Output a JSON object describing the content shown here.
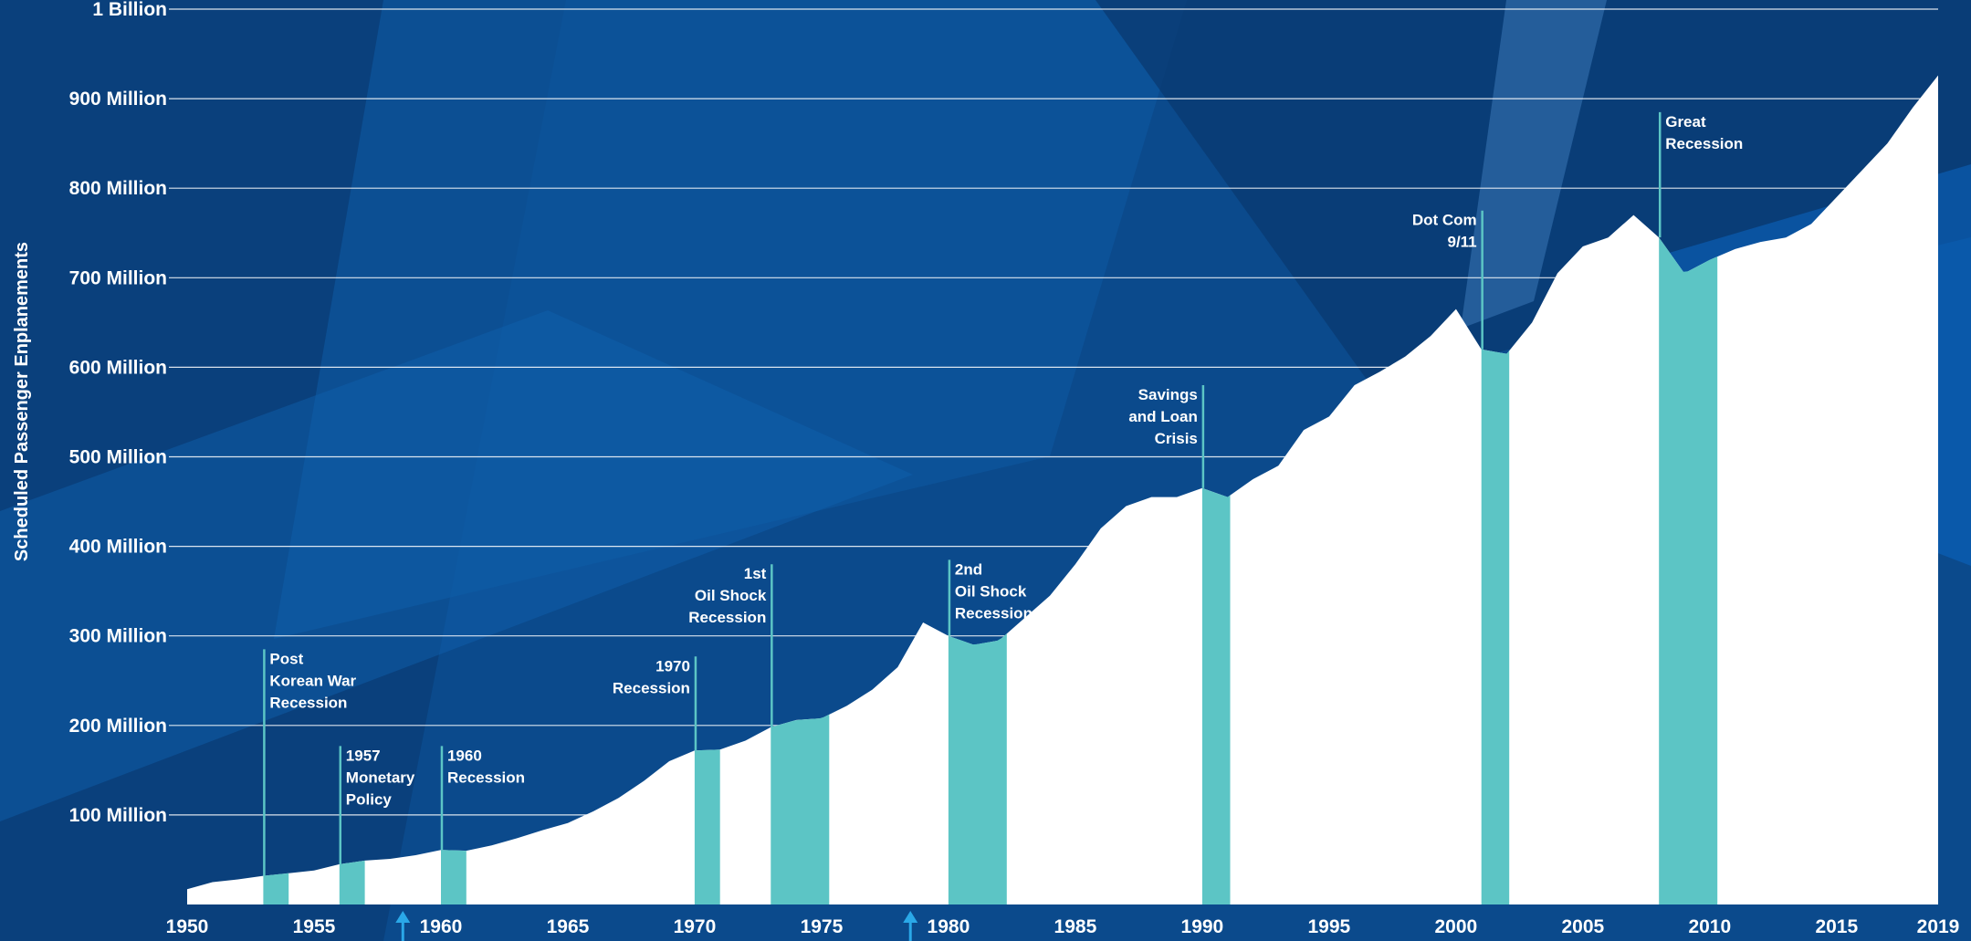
{
  "chart_data": {
    "type": "area",
    "title": "",
    "xlabel": "",
    "ylabel": "Scheduled Passenger Enplanements",
    "xlim": [
      1950,
      2019
    ],
    "ylim": [
      0,
      1000
    ],
    "grid": true,
    "x_ticks": [
      {
        "value": 1950,
        "label": "1950"
      },
      {
        "value": 1955,
        "label": "1955"
      },
      {
        "value": 1960,
        "label": "1960"
      },
      {
        "value": 1965,
        "label": "1965"
      },
      {
        "value": 1970,
        "label": "1970"
      },
      {
        "value": 1975,
        "label": "1975"
      },
      {
        "value": 1980,
        "label": "1980"
      },
      {
        "value": 1985,
        "label": "1985"
      },
      {
        "value": 1990,
        "label": "1990"
      },
      {
        "value": 1995,
        "label": "1995"
      },
      {
        "value": 2000,
        "label": "2000"
      },
      {
        "value": 2005,
        "label": "2005"
      },
      {
        "value": 2010,
        "label": "2010"
      },
      {
        "value": 2015,
        "label": "2015"
      },
      {
        "value": 2019,
        "label": "2019"
      }
    ],
    "y_ticks": [
      {
        "value": 100,
        "label": "100 Million"
      },
      {
        "value": 200,
        "label": "200 Million"
      },
      {
        "value": 300,
        "label": "300 Million"
      },
      {
        "value": 400,
        "label": "400 Million"
      },
      {
        "value": 500,
        "label": "500 Million"
      },
      {
        "value": 600,
        "label": "600 Million"
      },
      {
        "value": 700,
        "label": "700 Million"
      },
      {
        "value": 800,
        "label": "800 Million"
      },
      {
        "value": 900,
        "label": "900 Million"
      },
      {
        "value": 1000,
        "label": "1 Billion"
      }
    ],
    "x": [
      1950,
      1951,
      1952,
      1953,
      1954,
      1955,
      1956,
      1957,
      1958,
      1959,
      1960,
      1961,
      1962,
      1963,
      1964,
      1965,
      1966,
      1967,
      1968,
      1969,
      1970,
      1971,
      1972,
      1973,
      1974,
      1975,
      1976,
      1977,
      1978,
      1979,
      1980,
      1981,
      1982,
      1983,
      1984,
      1985,
      1986,
      1987,
      1988,
      1989,
      1990,
      1991,
      1992,
      1993,
      1994,
      1995,
      1996,
      1997,
      1998,
      1999,
      2000,
      2001,
      2002,
      2003,
      2004,
      2005,
      2006,
      2007,
      2008,
      2009,
      2010,
      2011,
      2012,
      2013,
      2014,
      2015,
      2016,
      2017,
      2018,
      2019
    ],
    "values": [
      17,
      25,
      28,
      32,
      35,
      38,
      45,
      49,
      51,
      55,
      61,
      60,
      66,
      74,
      83,
      91,
      104,
      119,
      138,
      160,
      172,
      173,
      183,
      198,
      206,
      208,
      222,
      240,
      265,
      315,
      300,
      290,
      295,
      320,
      345,
      380,
      420,
      445,
      455,
      455,
      465,
      455,
      475,
      490,
      530,
      545,
      580,
      595,
      612,
      635,
      665,
      620,
      615,
      650,
      705,
      735,
      745,
      770,
      745,
      705,
      720,
      732,
      740,
      745,
      760,
      790,
      820,
      850,
      890,
      926
    ],
    "series": [
      {
        "values_ref": "values"
      }
    ],
    "recessions": [
      {
        "start": 1953.0,
        "end": 1954.0,
        "label_lines": [
          "Post",
          "Korean War",
          "Recession"
        ],
        "side": "right",
        "top": 285
      },
      {
        "start": 1956.0,
        "end": 1957.0,
        "label_lines": [
          "1957",
          "Monetary",
          "Policy"
        ],
        "side": "right",
        "top": 177
      },
      {
        "start": 1960.0,
        "end": 1961.0,
        "label_lines": [
          "1960",
          "Recession"
        ],
        "side": "right",
        "top": 177
      },
      {
        "start": 1970.0,
        "end": 1971.0,
        "label_lines": [
          "1970",
          "Recession"
        ],
        "side": "left",
        "top": 277
      },
      {
        "start": 1973.0,
        "end": 1975.3,
        "label_lines": [
          "1st",
          "Oil Shock",
          "Recession"
        ],
        "side": "left",
        "top": 380
      },
      {
        "start": 1980.0,
        "end": 1982.3,
        "label_lines": [
          "2nd",
          "Oil Shock",
          "Recession"
        ],
        "side": "right",
        "top": 385
      },
      {
        "start": 1990.0,
        "end": 1991.1,
        "label_lines": [
          "Savings",
          "and Loan",
          "Crisis"
        ],
        "side": "left",
        "top": 580
      },
      {
        "start": 2001.0,
        "end": 2002.1,
        "label_lines": [
          "Dot Com",
          "9/11"
        ],
        "side": "left",
        "top": 775
      },
      {
        "start": 2008.0,
        "end": 2010.3,
        "label_lines": [
          "Great",
          "Recession"
        ],
        "side": "right",
        "top": 885
      }
    ],
    "markers": [
      {
        "year": 1958.5,
        "direction": "up"
      },
      {
        "year": 1978.5,
        "direction": "up"
      }
    ],
    "colors": {
      "background": "#0b4a8c",
      "area": "#ffffff",
      "recession": "#5cc5c5",
      "grid": "#ffffff",
      "marker": "#2aa8e8"
    }
  }
}
